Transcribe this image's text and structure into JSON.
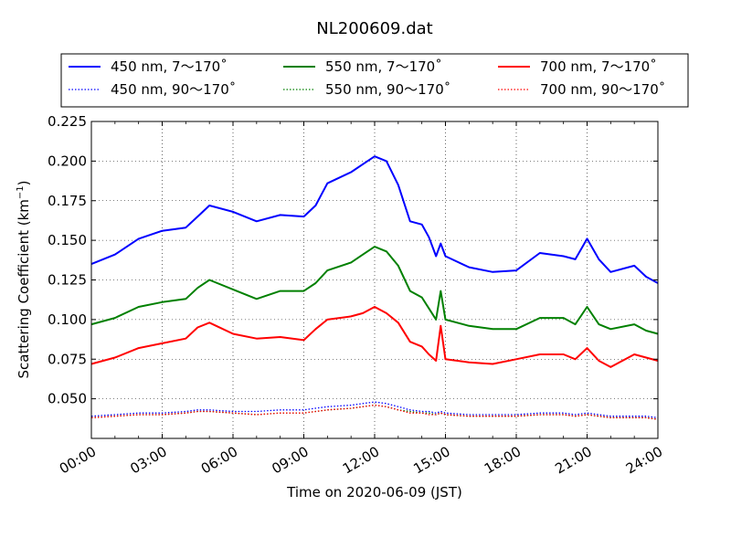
{
  "chart_data": {
    "type": "line",
    "title": "NL200609.dat",
    "xlabel": "Time on 2020-06-09 (JST)",
    "ylabel_main": "Scattering Coefficient (km",
    "ylabel_sup": "−1",
    "ylabel_close": ")",
    "xlim_hours": [
      0,
      24
    ],
    "ylim": [
      0.025,
      0.225
    ],
    "x_ticks": [
      {
        "hour": 0,
        "label": "00:00"
      },
      {
        "hour": 3,
        "label": "03:00"
      },
      {
        "hour": 6,
        "label": "06:00"
      },
      {
        "hour": 9,
        "label": "09:00"
      },
      {
        "hour": 12,
        "label": "12:00"
      },
      {
        "hour": 15,
        "label": "15:00"
      },
      {
        "hour": 18,
        "label": "18:00"
      },
      {
        "hour": 21,
        "label": "21:00"
      },
      {
        "hour": 24,
        "label": "24:00"
      }
    ],
    "y_ticks": [
      {
        "value": 0.05,
        "label": "0.050"
      },
      {
        "value": 0.075,
        "label": "0.075"
      },
      {
        "value": 0.1,
        "label": "0.100"
      },
      {
        "value": 0.125,
        "label": "0.125"
      },
      {
        "value": 0.15,
        "label": "0.150"
      },
      {
        "value": 0.175,
        "label": "0.175"
      },
      {
        "value": 0.2,
        "label": "0.200"
      },
      {
        "value": 0.225,
        "label": "0.225"
      }
    ],
    "grid": true,
    "legend_position": "top",
    "x": [
      0,
      1,
      2,
      3,
      4,
      4.5,
      5,
      6,
      7,
      8,
      9,
      9.5,
      10,
      11,
      11.5,
      12,
      12.5,
      13,
      13.5,
      14,
      14.3,
      14.6,
      14.8,
      15,
      16,
      17,
      18,
      19,
      20,
      20.5,
      21,
      21.5,
      22,
      23,
      23.5,
      24
    ],
    "series": [
      {
        "name": "450 nm, 7～170˚",
        "color": "#0000ff",
        "style": "solid",
        "values": [
          0.135,
          0.141,
          0.151,
          0.156,
          0.158,
          0.165,
          0.172,
          0.168,
          0.162,
          0.166,
          0.165,
          0.172,
          0.186,
          0.193,
          0.198,
          0.203,
          0.2,
          0.185,
          0.162,
          0.16,
          0.152,
          0.14,
          0.148,
          0.14,
          0.133,
          0.13,
          0.131,
          0.142,
          0.14,
          0.138,
          0.151,
          0.138,
          0.13,
          0.134,
          0.127,
          0.123
        ]
      },
      {
        "name": "550 nm, 7～170˚",
        "color": "#008000",
        "style": "solid",
        "values": [
          0.097,
          0.101,
          0.108,
          0.111,
          0.113,
          0.12,
          0.125,
          0.119,
          0.113,
          0.118,
          0.118,
          0.123,
          0.131,
          0.136,
          0.141,
          0.146,
          0.143,
          0.134,
          0.118,
          0.114,
          0.107,
          0.1,
          0.118,
          0.1,
          0.096,
          0.094,
          0.094,
          0.101,
          0.101,
          0.097,
          0.108,
          0.097,
          0.094,
          0.097,
          0.093,
          0.091
        ]
      },
      {
        "name": "700 nm, 7～170˚",
        "color": "#ff0000",
        "style": "solid",
        "values": [
          0.072,
          0.076,
          0.082,
          0.085,
          0.088,
          0.095,
          0.098,
          0.091,
          0.088,
          0.089,
          0.087,
          0.094,
          0.1,
          0.102,
          0.104,
          0.108,
          0.104,
          0.098,
          0.086,
          0.083,
          0.078,
          0.074,
          0.096,
          0.075,
          0.073,
          0.072,
          0.075,
          0.078,
          0.078,
          0.075,
          0.082,
          0.074,
          0.07,
          0.078,
          0.076,
          0.074
        ]
      },
      {
        "name": "450 nm, 90～170˚",
        "color": "#0000ff",
        "style": "dotted",
        "values": [
          0.039,
          0.04,
          0.041,
          0.041,
          0.042,
          0.043,
          0.043,
          0.042,
          0.042,
          0.043,
          0.043,
          0.044,
          0.045,
          0.046,
          0.047,
          0.048,
          0.047,
          0.045,
          0.043,
          0.042,
          0.042,
          0.041,
          0.042,
          0.041,
          0.04,
          0.04,
          0.04,
          0.041,
          0.041,
          0.04,
          0.041,
          0.04,
          0.039,
          0.039,
          0.039,
          0.038
        ]
      },
      {
        "name": "550 nm, 90～170˚",
        "color": "#008000",
        "style": "dotted",
        "values": [
          0.038,
          0.039,
          0.04,
          0.04,
          0.041,
          0.042,
          0.042,
          0.041,
          0.04,
          0.041,
          0.041,
          0.042,
          0.043,
          0.044,
          0.045,
          0.046,
          0.045,
          0.043,
          0.042,
          0.041,
          0.041,
          0.04,
          0.041,
          0.04,
          0.039,
          0.039,
          0.039,
          0.04,
          0.04,
          0.039,
          0.04,
          0.039,
          0.038,
          0.038,
          0.038,
          0.037
        ]
      },
      {
        "name": "700 nm, 90～170˚",
        "color": "#ff0000",
        "style": "dotted",
        "values": [
          0.038,
          0.039,
          0.04,
          0.04,
          0.041,
          0.042,
          0.042,
          0.041,
          0.04,
          0.041,
          0.041,
          0.042,
          0.043,
          0.044,
          0.045,
          0.046,
          0.045,
          0.043,
          0.041,
          0.041,
          0.04,
          0.04,
          0.041,
          0.04,
          0.039,
          0.039,
          0.039,
          0.04,
          0.04,
          0.039,
          0.04,
          0.039,
          0.038,
          0.038,
          0.038,
          0.037
        ]
      }
    ]
  }
}
